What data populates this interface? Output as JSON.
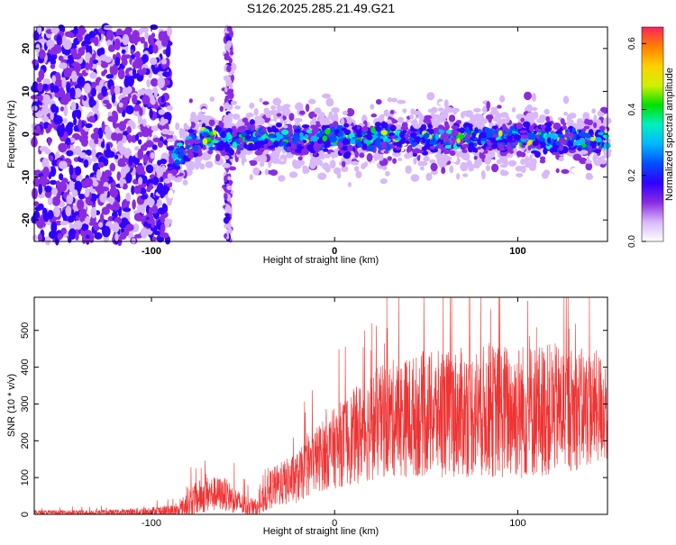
{
  "title": "S126.2025.285.21.49.G21",
  "chart_data": [
    {
      "id": "spectrogram",
      "type": "heatmap",
      "xlabel": "Height of straight line (km)",
      "ylabel": "Frequency (Hz)",
      "xlim": [
        -164,
        149
      ],
      "ylim": [
        -25,
        25
      ],
      "xticks": [
        -100,
        0,
        100
      ],
      "yticks": [
        -20,
        -10,
        0,
        10,
        20
      ],
      "colorbar": {
        "label": "Normalized spectral amplitude",
        "range": [
          0,
          0.65
        ],
        "ticks": [
          0.0,
          0.2,
          0.4,
          0.6
        ],
        "colors": [
          "#ffffff",
          "#d8b8f8",
          "#8a2be2",
          "#3000ff",
          "#0050ff",
          "#00b8ff",
          "#00f0c0",
          "#00e000",
          "#d0f000",
          "#ffd000",
          "#ff8000",
          "#ff2060"
        ]
      },
      "features": {
        "noise_region_x": [
          -164,
          -90
        ],
        "gap_region_x": [
          -90,
          -60
        ],
        "vertical_stripe_x": -58,
        "signal_region_x": [
          -90,
          149
        ],
        "signal_center_hz": -1,
        "signal_halfwidth_hz": 5
      }
    },
    {
      "id": "snr",
      "type": "line",
      "xlabel": "Height of straight line (km)",
      "ylabel": "SNR (10 * v/v)",
      "xlim": [
        -164,
        149
      ],
      "ylim": [
        0,
        590
      ],
      "xticks": [
        -100,
        0,
        100
      ],
      "yticks": [
        0,
        100,
        200,
        300,
        400,
        500
      ],
      "color": "#ee3333",
      "envelope": {
        "x": [
          -164,
          -120,
          -85,
          -80,
          -70,
          -60,
          -50,
          -42,
          -35,
          -20,
          -10,
          0,
          10,
          20,
          30,
          50,
          80,
          100,
          120,
          149
        ],
        "baseline": [
          5,
          5,
          8,
          30,
          55,
          55,
          25,
          15,
          70,
          100,
          150,
          180,
          210,
          240,
          260,
          270,
          280,
          280,
          285,
          290
        ],
        "spread": [
          6,
          8,
          20,
          45,
          50,
          45,
          30,
          25,
          55,
          70,
          90,
          110,
          130,
          150,
          160,
          170,
          180,
          190,
          180,
          150
        ]
      }
    }
  ]
}
